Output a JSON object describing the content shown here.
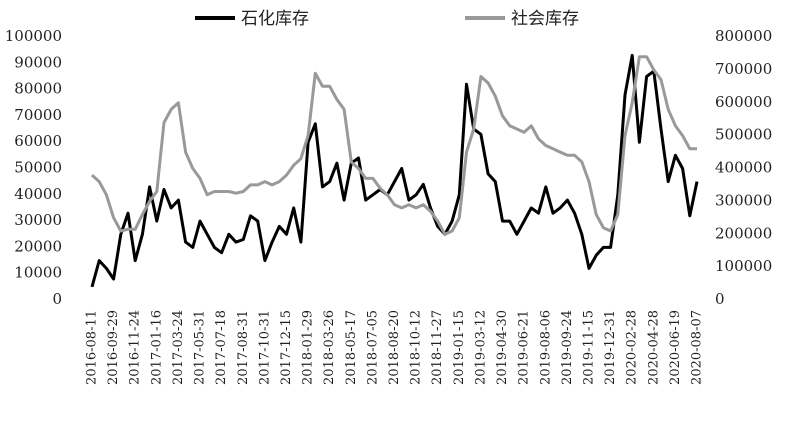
{
  "chart_data": {
    "type": "line",
    "categories": [
      "2016-08-11",
      null,
      null,
      "2016-09-29",
      null,
      null,
      "2016-11-24",
      null,
      null,
      "2017-01-16",
      null,
      null,
      "2017-03-24",
      null,
      null,
      "2017-05-31",
      null,
      null,
      "2017-07-18",
      null,
      null,
      "2017-08-31",
      null,
      null,
      "2017-10-31",
      null,
      null,
      "2017-12-15",
      null,
      null,
      "2018-01-29",
      null,
      null,
      "2018-03-26",
      null,
      null,
      "2018-05-17",
      null,
      null,
      "2018-07-05",
      null,
      null,
      "2018-08-20",
      null,
      null,
      "2018-10-12",
      null,
      null,
      "2018-11-27",
      null,
      null,
      "2019-01-15",
      null,
      null,
      "2019-03-12",
      null,
      null,
      "2019-04-30",
      null,
      null,
      "2019-06-21",
      null,
      null,
      "2019-08-06",
      null,
      null,
      "2019-09-24",
      null,
      null,
      "2019-11-15",
      null,
      null,
      "2019-12-31",
      null,
      null,
      "2020-02-28",
      null,
      null,
      "2020-04-28",
      null,
      null,
      "2020-06-19",
      null,
      null,
      "2020-08-07"
    ],
    "series": [
      {
        "name": "石化库存",
        "color": "#000000",
        "axis": "y",
        "values": [
          5000,
          15000,
          12000,
          8000,
          25000,
          33000,
          15000,
          25000,
          43000,
          30000,
          42000,
          35000,
          38000,
          22000,
          20000,
          30000,
          25000,
          20000,
          18000,
          25000,
          22000,
          23000,
          32000,
          30000,
          15000,
          22000,
          28000,
          25000,
          35000,
          22000,
          60000,
          67000,
          43000,
          45000,
          52000,
          38000,
          52000,
          54000,
          38000,
          40000,
          42000,
          40000,
          45000,
          50000,
          38000,
          40000,
          44000,
          35000,
          28000,
          25000,
          30000,
          40000,
          82000,
          65000,
          63000,
          48000,
          45000,
          30000,
          30000,
          25000,
          30000,
          35000,
          33000,
          43000,
          33000,
          35000,
          38000,
          33000,
          25000,
          12000,
          17000,
          20000,
          20000,
          40000,
          78000,
          93000,
          60000,
          85000,
          87000,
          65000,
          45000,
          55000,
          50000,
          32000,
          45000
        ]
      },
      {
        "name": "社会库存",
        "color": "#999999",
        "axis": "y2",
        "values": [
          380000,
          360000,
          320000,
          250000,
          210000,
          215000,
          215000,
          260000,
          300000,
          330000,
          540000,
          580000,
          600000,
          450000,
          400000,
          370000,
          320000,
          330000,
          330000,
          330000,
          325000,
          330000,
          350000,
          350000,
          360000,
          350000,
          360000,
          380000,
          410000,
          430000,
          500000,
          690000,
          650000,
          650000,
          610000,
          580000,
          420000,
          400000,
          370000,
          370000,
          340000,
          320000,
          290000,
          280000,
          290000,
          280000,
          290000,
          270000,
          240000,
          200000,
          210000,
          250000,
          450000,
          520000,
          680000,
          660000,
          620000,
          560000,
          530000,
          520000,
          510000,
          530000,
          490000,
          470000,
          460000,
          450000,
          440000,
          440000,
          420000,
          360000,
          260000,
          220000,
          210000,
          260000,
          500000,
          600000,
          740000,
          740000,
          700000,
          670000,
          580000,
          530000,
          500000,
          460000,
          460000
        ]
      }
    ],
    "ylim": [
      0,
      100000
    ],
    "yticks": [
      0,
      10000,
      20000,
      30000,
      40000,
      50000,
      60000,
      70000,
      80000,
      90000,
      100000
    ],
    "y2lim": [
      0,
      800000
    ],
    "y2ticks": [
      0,
      100000,
      200000,
      300000,
      400000,
      500000,
      600000,
      700000,
      800000
    ],
    "legend": "top"
  }
}
